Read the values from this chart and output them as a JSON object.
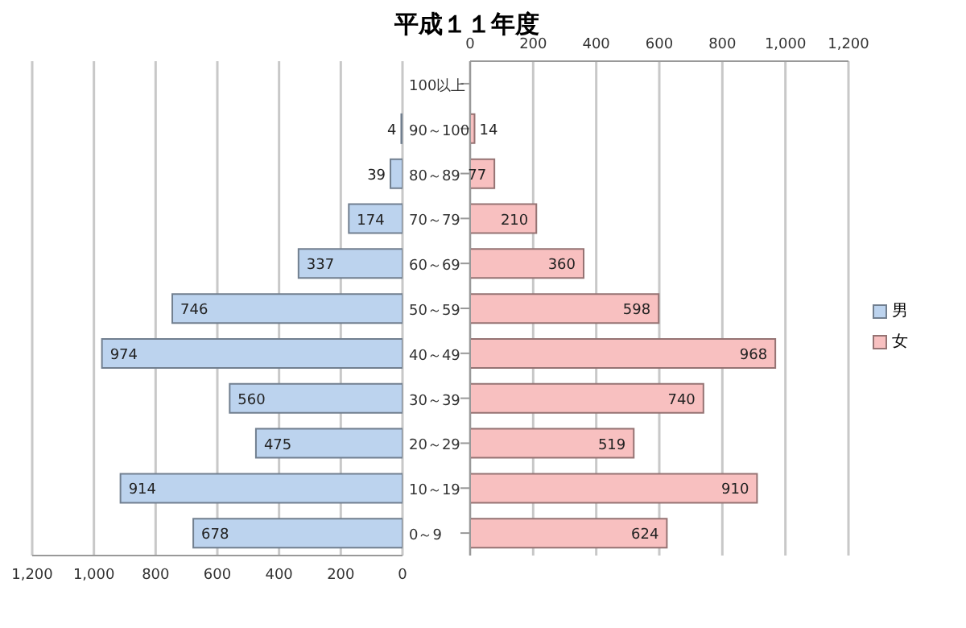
{
  "chart_data": {
    "type": "bar",
    "orientation": "horizontal",
    "title": "平成１１年度",
    "categories": [
      "100以上",
      "90～100",
      "80～89",
      "70～79",
      "60～69",
      "50～59",
      "40～49",
      "30～39",
      "20～29",
      "10～19",
      "0～9"
    ],
    "series": [
      {
        "name": "男",
        "color": "#bcd3ee",
        "values": [
          null,
          4,
          39,
          174,
          337,
          746,
          974,
          560,
          475,
          914,
          678
        ]
      },
      {
        "name": "女",
        "color": "#f8c0c0",
        "axis": "x2",
        "values": [
          null,
          14,
          77,
          210,
          360,
          598,
          968,
          740,
          519,
          910,
          624
        ]
      }
    ],
    "xlim": [
      1200,
      0
    ],
    "xticks": [
      {
        "value": 1200,
        "label": "1,200"
      },
      {
        "value": 1000,
        "label": "1,000"
      },
      800,
      600,
      400,
      200,
      0
    ],
    "x2lim": [
      0,
      1200
    ],
    "x2ticks": [
      0,
      200,
      400,
      600,
      800,
      {
        "value": 1000,
        "label": "1,000"
      },
      {
        "value": 1200,
        "label": "1,200"
      }
    ],
    "grid": "x",
    "legend": "right",
    "data_labels": true
  }
}
